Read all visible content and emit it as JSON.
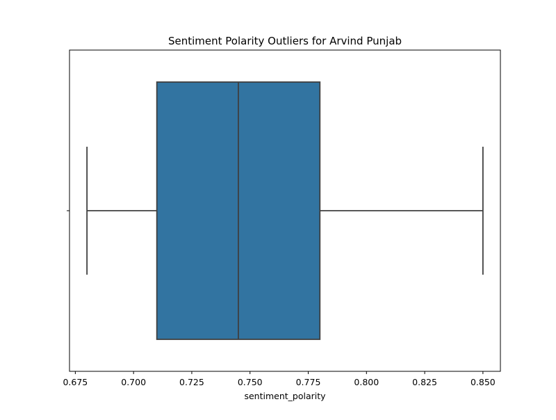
{
  "chart_data": {
    "type": "box",
    "title": "Sentiment Polarity Outliers for Arvind Punjab",
    "xlabel": "sentiment_polarity",
    "ylabel": "",
    "orientation": "horizontal",
    "xlim": [
      0.6725,
      0.8575
    ],
    "xticks": [
      0.675,
      0.7,
      0.725,
      0.75,
      0.775,
      0.8,
      0.825,
      0.85
    ],
    "xtick_labels": [
      "0.675",
      "0.700",
      "0.725",
      "0.750",
      "0.775",
      "0.800",
      "0.825",
      "0.850"
    ],
    "grid": false,
    "series": [
      {
        "whisker_low": 0.68,
        "q1": 0.71,
        "median": 0.745,
        "q3": 0.78,
        "whisker_high": 0.85,
        "outliers": []
      }
    ],
    "colors": {
      "box_fill": "#3274a1",
      "box_line": "#3f3f3f",
      "axis": "#000000"
    }
  }
}
